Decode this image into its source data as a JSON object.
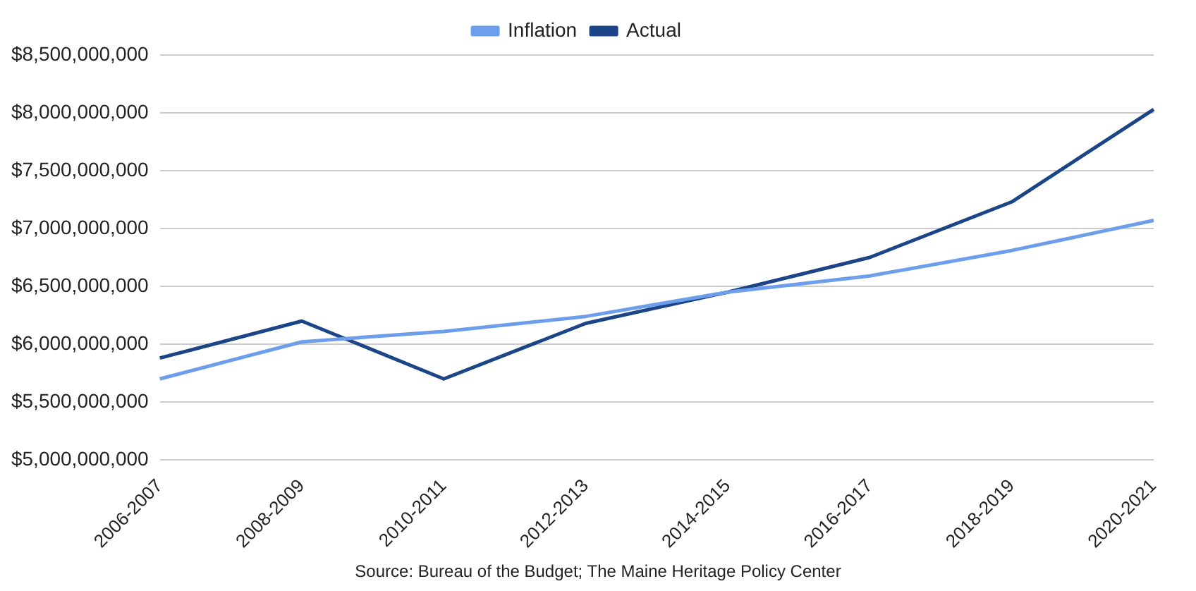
{
  "chart_data": {
    "type": "line",
    "categories": [
      "2006-2007",
      "2008-2009",
      "2010-2011",
      "2012-2013",
      "2014-2015",
      "2016-2017",
      "2018-2019",
      "2020-2021"
    ],
    "series": [
      {
        "name": "Inflation",
        "color": "#6d9eeb",
        "values": [
          5700000000,
          6020000000,
          6110000000,
          6240000000,
          6450000000,
          6590000000,
          6810000000,
          7070000000
        ]
      },
      {
        "name": "Actual",
        "color": "#1c4587",
        "values": [
          5880000000,
          6200000000,
          5700000000,
          6180000000,
          6450000000,
          6750000000,
          7230000000,
          8030000000
        ]
      }
    ],
    "ylim": [
      5000000000,
      8500000000
    ],
    "yticks": [
      {
        "value": 5000000000,
        "label": "$5,000,000,000"
      },
      {
        "value": 5500000000,
        "label": "$5,500,000,000"
      },
      {
        "value": 6000000000,
        "label": "$6,000,000,000"
      },
      {
        "value": 6500000000,
        "label": "$6,500,000,000"
      },
      {
        "value": 7000000000,
        "label": "$7,000,000,000"
      },
      {
        "value": 7500000000,
        "label": "$7,500,000,000"
      },
      {
        "value": 8000000000,
        "label": "$8,000,000,000"
      },
      {
        "value": 8500000000,
        "label": "$8,500,000,000"
      }
    ],
    "grid": "y",
    "legend": "top",
    "marker": "none",
    "line_style": "solid",
    "annotations": [
      "Source: Bureau of the Budget; The Maine Heritage Policy Center"
    ]
  }
}
